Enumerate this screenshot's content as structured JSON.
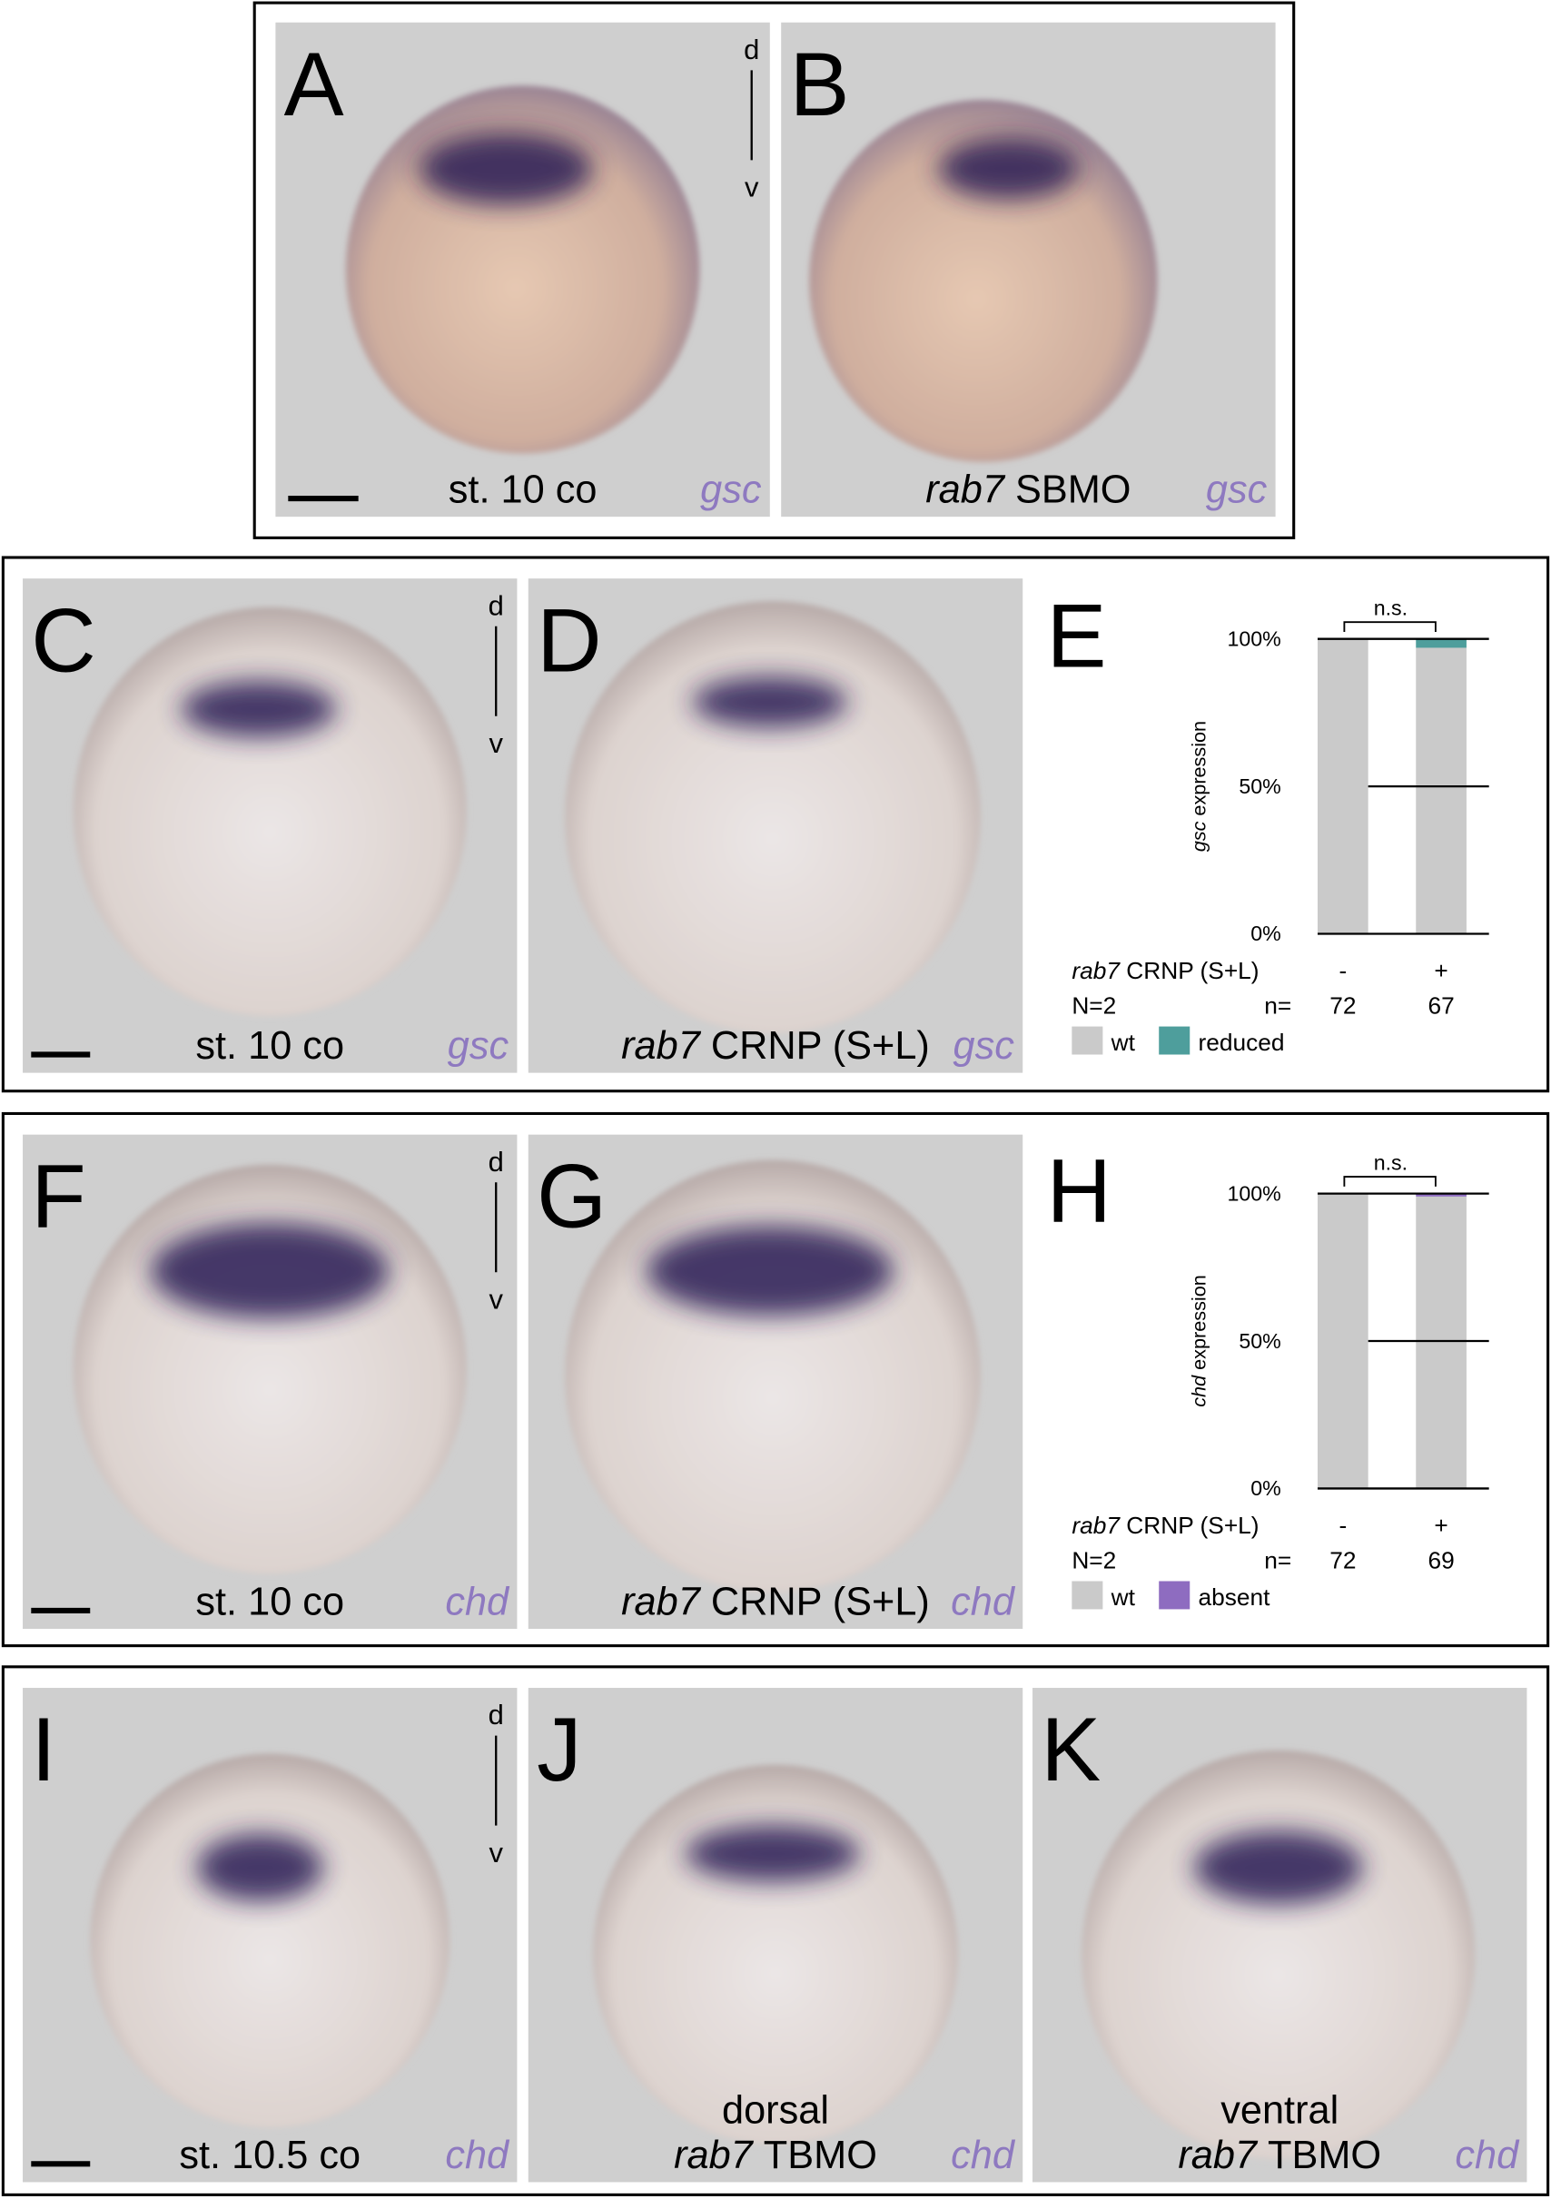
{
  "panels": [
    {
      "label": "A",
      "caption": "st. 10 co",
      "gene": "gsc",
      "orientation": [
        "d",
        "v"
      ]
    },
    {
      "label": "B",
      "caption_italic": "rab7",
      "caption": "SBMO",
      "gene": "gsc"
    },
    {
      "label": "C",
      "caption": "st. 10 co",
      "gene": "gsc",
      "orientation": [
        "d",
        "v"
      ]
    },
    {
      "label": "D",
      "caption_italic": "rab7",
      "caption": "CRNP (S+L)",
      "gene": "gsc"
    },
    {
      "label": "F",
      "caption": "st. 10 co",
      "gene": "chd",
      "orientation": [
        "d",
        "v"
      ]
    },
    {
      "label": "G",
      "caption_italic": "rab7",
      "caption": "CRNP (S+L)",
      "gene": "chd"
    },
    {
      "label": "I",
      "caption": "st. 10.5 co",
      "gene": "chd",
      "orientation": [
        "d",
        "v"
      ]
    },
    {
      "label": "J",
      "caption_top": "dorsal",
      "caption_italic": "rab7",
      "caption": "TBMO",
      "gene": "chd"
    },
    {
      "label": "K",
      "caption_top": "ventral",
      "caption_italic": "rab7",
      "caption": "TBMO",
      "gene": "chd"
    }
  ],
  "chart_data": [
    {
      "type": "bar",
      "stacked": true,
      "panel_label": "E",
      "ylabel_italic": "gsc",
      "ylabel": "expression",
      "categories": [
        "-",
        "+"
      ],
      "row_label_italic": "rab7",
      "row_label": "CRNP (S+L)",
      "sample_label": "N=2",
      "count_label": "n=",
      "counts": [
        72,
        67
      ],
      "annotation": "n.s.",
      "ylim": [
        0,
        100
      ],
      "yticks": [
        {
          "value": 0,
          "label": "0%"
        },
        {
          "value": 50,
          "label": "50%"
        },
        {
          "value": 100,
          "label": "100%"
        }
      ],
      "series": [
        {
          "name": "wt",
          "color": "#cacaca",
          "values": [
            100,
            97
          ]
        },
        {
          "name": "reduced",
          "color": "#4e9e9c",
          "values": [
            0,
            3
          ]
        }
      ]
    },
    {
      "type": "bar",
      "stacked": true,
      "panel_label": "H",
      "ylabel_italic": "chd",
      "ylabel": "expression",
      "categories": [
        "-",
        "+"
      ],
      "row_label_italic": "rab7",
      "row_label": "CRNP (S+L)",
      "sample_label": "N=2",
      "count_label": "n=",
      "counts": [
        72,
        69
      ],
      "annotation": "n.s.",
      "ylim": [
        0,
        100
      ],
      "yticks": [
        {
          "value": 0,
          "label": "0%"
        },
        {
          "value": 50,
          "label": "50%"
        },
        {
          "value": 100,
          "label": "100%"
        }
      ],
      "series": [
        {
          "name": "wt",
          "color": "#cacaca",
          "values": [
            100,
            99
          ]
        },
        {
          "name": "absent",
          "color": "#8e6cc0",
          "values": [
            0,
            1
          ]
        }
      ]
    }
  ]
}
